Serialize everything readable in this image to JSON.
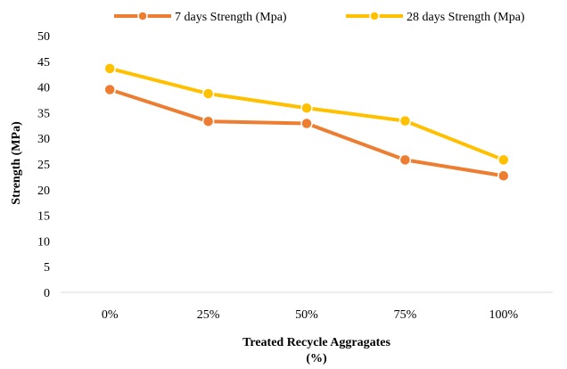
{
  "chart_data": {
    "type": "line",
    "categories": [
      "0%",
      "25%",
      "50%",
      "75%",
      "100%"
    ],
    "series": [
      {
        "name": "7 days Strength (Mpa)",
        "values": [
          39.5,
          33.3,
          32.9,
          25.8,
          22.7
        ],
        "color": "#ED7D31"
      },
      {
        "name": "28 days Strength (Mpa)",
        "values": [
          43.6,
          38.7,
          35.9,
          33.4,
          25.8
        ],
        "color": "#FFC000"
      }
    ],
    "xlabel_line1": "Treated Recycle Aggragates",
    "xlabel_line2": "(%)",
    "ylabel": "Strength (MPa)",
    "ylim": [
      0,
      50
    ],
    "yticks": [
      "0",
      "5",
      "10",
      "15",
      "20",
      "25",
      "30",
      "35",
      "40",
      "45",
      "50"
    ],
    "grid": false,
    "legend_position": "top"
  }
}
